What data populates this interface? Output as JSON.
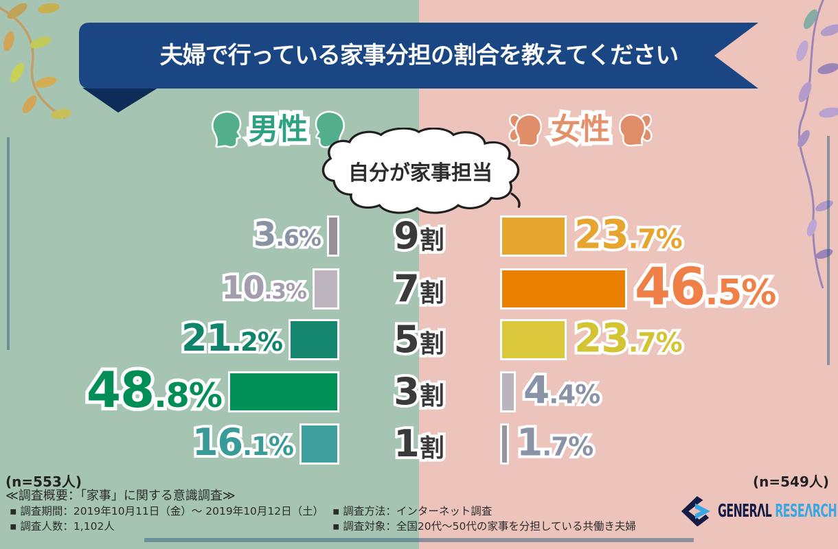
{
  "title": "夫婦で行っている家事分担の割合を教えてください",
  "bubble_label": "自分が家事担当",
  "groups": {
    "male": {
      "label": "男性",
      "n_label": "(n=553人)",
      "label_color": "#2fa183",
      "icon_color": "#52ae8b"
    },
    "female": {
      "label": "女性",
      "n_label": "(n=549人)",
      "label_color": "#e3906c",
      "icon_color": "#e08d69"
    }
  },
  "chart_data": {
    "type": "bar",
    "title": "夫婦で行っている家事分担の割合を教えてください",
    "categories": [
      "9割",
      "7割",
      "5割",
      "3割",
      "1割"
    ],
    "category_note": "share of housework done by self",
    "series": [
      {
        "name": "男性",
        "n": 553,
        "values": [
          3.6,
          10.3,
          21.2,
          48.8,
          16.1
        ],
        "bar_colors": [
          "#968f96",
          "#bcb5bd",
          "#15876f",
          "#009158",
          "#3f9f9c"
        ],
        "label_colors": [
          "#8a93a6",
          "#a39dae",
          "#10836b",
          "#008d56",
          "#399b98"
        ]
      },
      {
        "name": "女性",
        "n": 549,
        "values": [
          23.7,
          46.5,
          23.7,
          4.4,
          1.7
        ],
        "bar_colors": [
          "#e6a52f",
          "#ea8000",
          "#dcc83c",
          "#bab4bc",
          "#99939b"
        ],
        "label_colors": [
          "#e6a52f",
          "#ef8048",
          "#d2c433",
          "#8a93a6",
          "#8a93a6"
        ]
      }
    ],
    "value_suffix": "%",
    "legend": [
      "男性",
      "女性"
    ],
    "legend_position": "top"
  },
  "footer": {
    "survey_title": "≪調査概要：「家事」に関する意識調査≫",
    "items_left": [
      "▪ 調査期間：2019年10月11日（金）～ 2019年10月12日（土）",
      "▪ 調査人数：1,102人"
    ],
    "items_right": [
      "▪ 調査方法：インターネット調査",
      "▪ 調査対象：全国20代～50代の家事を分担している共働き夫婦"
    ],
    "logo_part1": "GENERAL",
    "logo_part2": "RESEARCH"
  },
  "colors": {
    "bg_left": "#a5c4b1",
    "bg_right": "#edc4bc",
    "ribbon": "#1a4683",
    "ribbon_fold": "#0d2c58",
    "title_text": "#ffffff",
    "logo_navy": "#141b45",
    "logo_blue": "#3aa7e2"
  }
}
